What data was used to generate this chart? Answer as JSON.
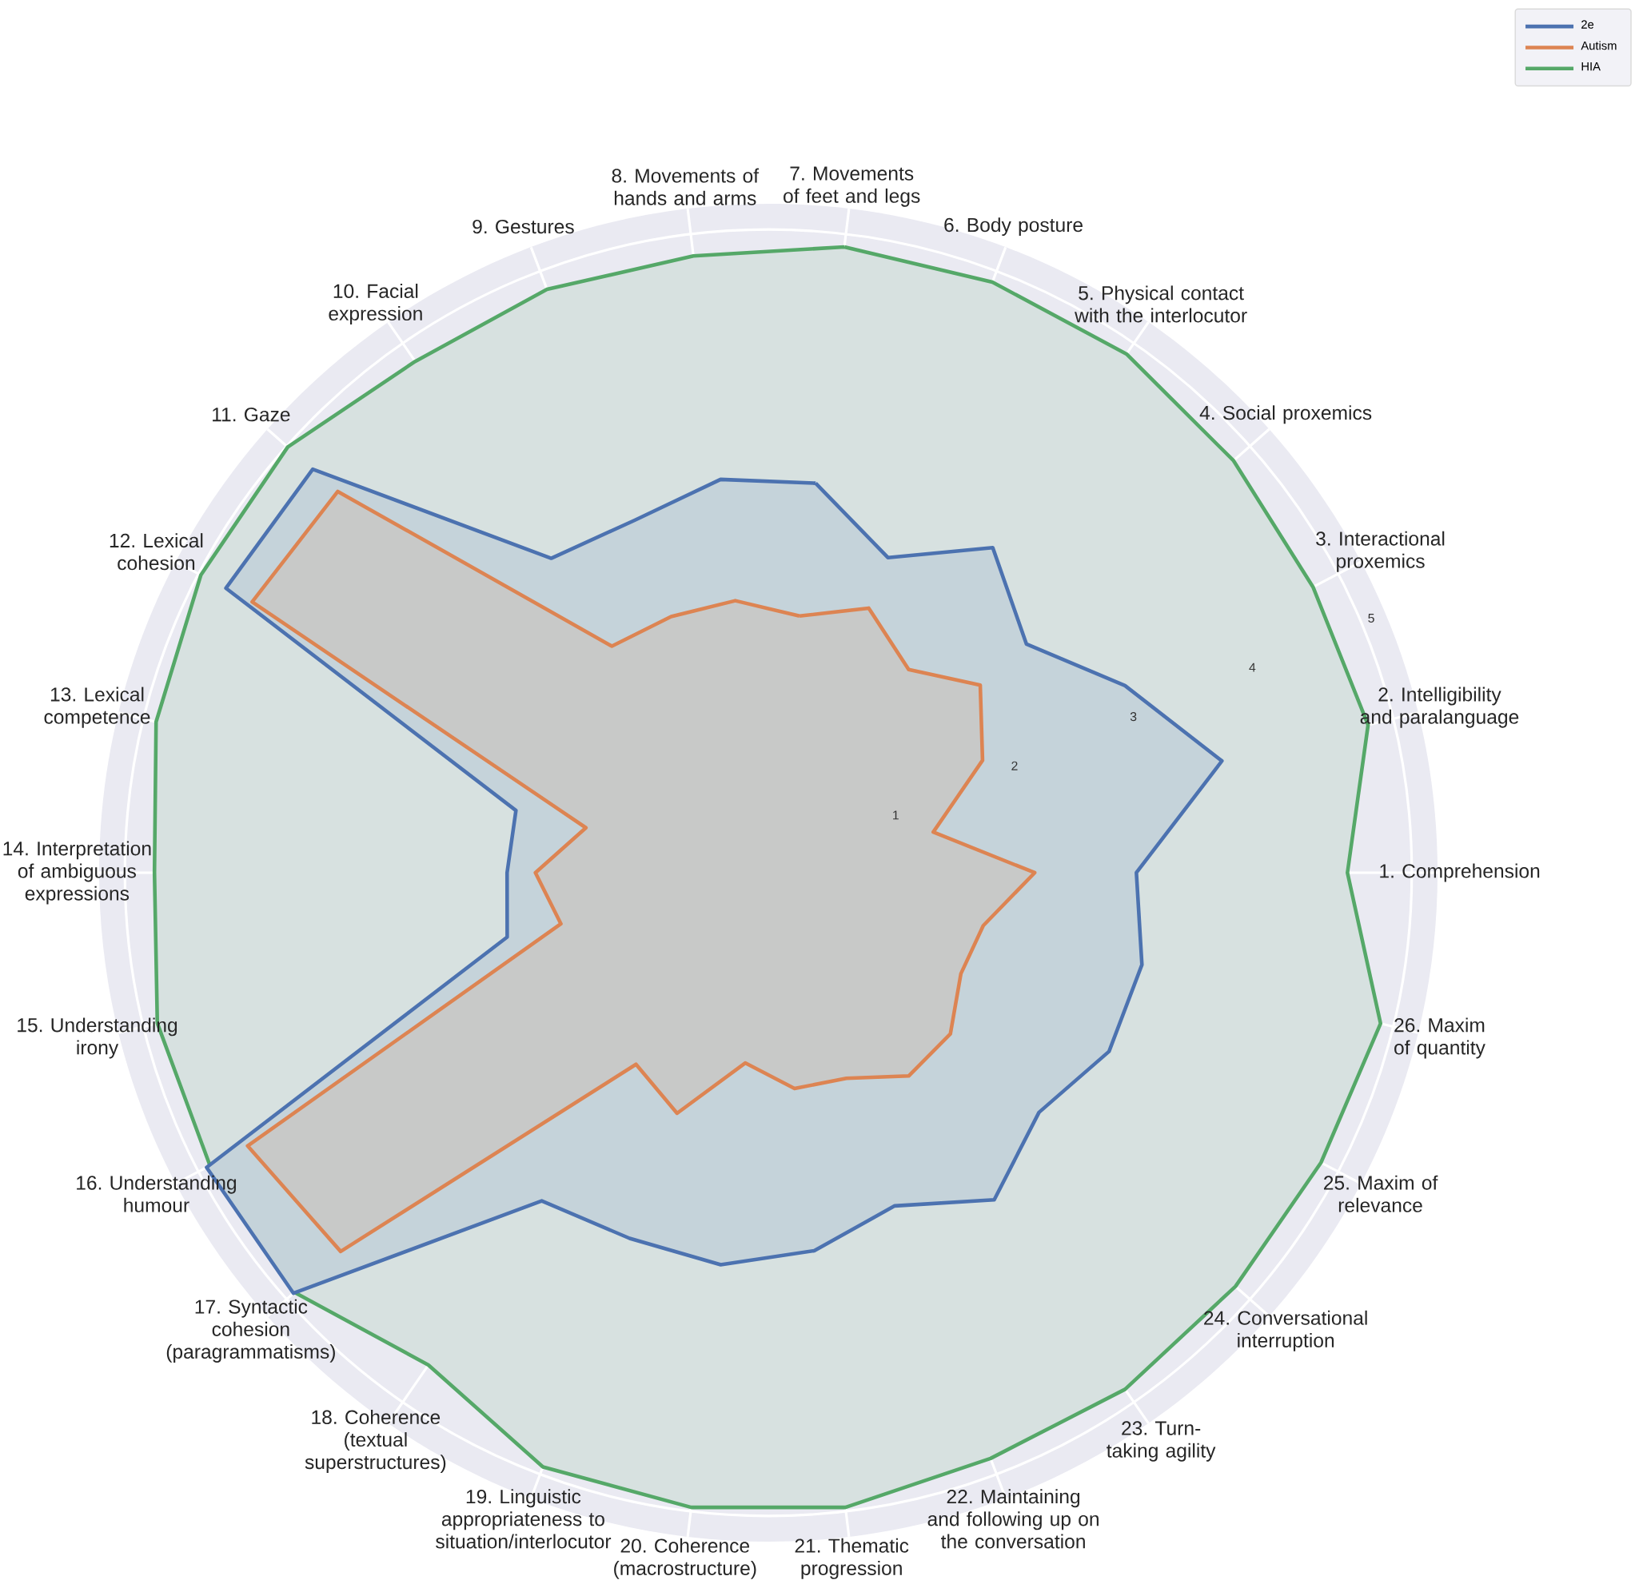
{
  "chart_data": {
    "type": "radar",
    "categories": [
      "7. Movements of feet and legs",
      "6. Body posture",
      "5. Physical contact with the interlocutor",
      "4. Social proxemics",
      "3. Interactional proxemics",
      "2. Intelligibility and paralanguage",
      "1. Comprehension",
      "26. Maxim of quantity",
      "25. Maxim of relevance",
      "24. Conversational interruption",
      "23. Turn-taking agility",
      "22. Maintaining and following up on the conversation",
      "21. Thematic progression",
      "20. Coherence (macrostructure)",
      "19. Linguistic appropriateness to situation/interlocutor",
      "18. Coherence (textual superstructures)",
      "17. Syntactic cohesion (paragrammatisms)",
      "16. Understanding humour",
      "15. Understanding irony",
      "14. Interpretation of ambiguous expressions",
      "13. Lexical competence",
      "12. Lexical cohesion",
      "11. Gaze",
      "10. Facial expression",
      "9. Gestures",
      "8. Movements of hands and arms"
    ],
    "series": [
      {
        "name": "2e",
        "color": "#4c72b0",
        "values": [
          3.05,
          2.62,
          3.07,
          2.68,
          3.13,
          3.63,
          2.86,
          2.99,
          2.99,
          2.81,
          3.09,
          2.77,
          2.96,
          3.07,
          3.04,
          3.1,
          4.93,
          4.93,
          2.09,
          2.03,
          2.02,
          4.76,
          4.73,
          2.97,
          2.93,
          3.08
        ]
      },
      {
        "name": "Autism",
        "color": "#dd8452",
        "values": [
          2.01,
          2.2,
          1.92,
          2.2,
          1.88,
          1.32,
          2.07,
          1.72,
          1.69,
          1.89,
          1.92,
          1.71,
          1.69,
          1.49,
          2.0,
          1.81,
          4.44,
          4.57,
          1.66,
          1.81,
          1.46,
          4.53,
          4.47,
          2.14,
          2.13,
          2.13
        ]
      },
      {
        "name": "HIA",
        "color": "#55a868",
        "values": [
          4.9,
          4.91,
          4.9,
          4.83,
          4.78,
          4.8,
          4.5,
          4.9,
          4.85,
          4.85,
          4.88,
          4.87,
          4.97,
          4.97,
          4.94,
          4.65,
          4.92,
          4.9,
          4.89,
          4.77,
          4.9,
          4.98,
          4.99,
          4.83,
          4.85,
          4.83
        ]
      }
    ],
    "ylim": [
      0,
      5.2
    ],
    "yticks": [
      1,
      2,
      3,
      4,
      5
    ],
    "grid": true,
    "legend": "top right"
  }
}
